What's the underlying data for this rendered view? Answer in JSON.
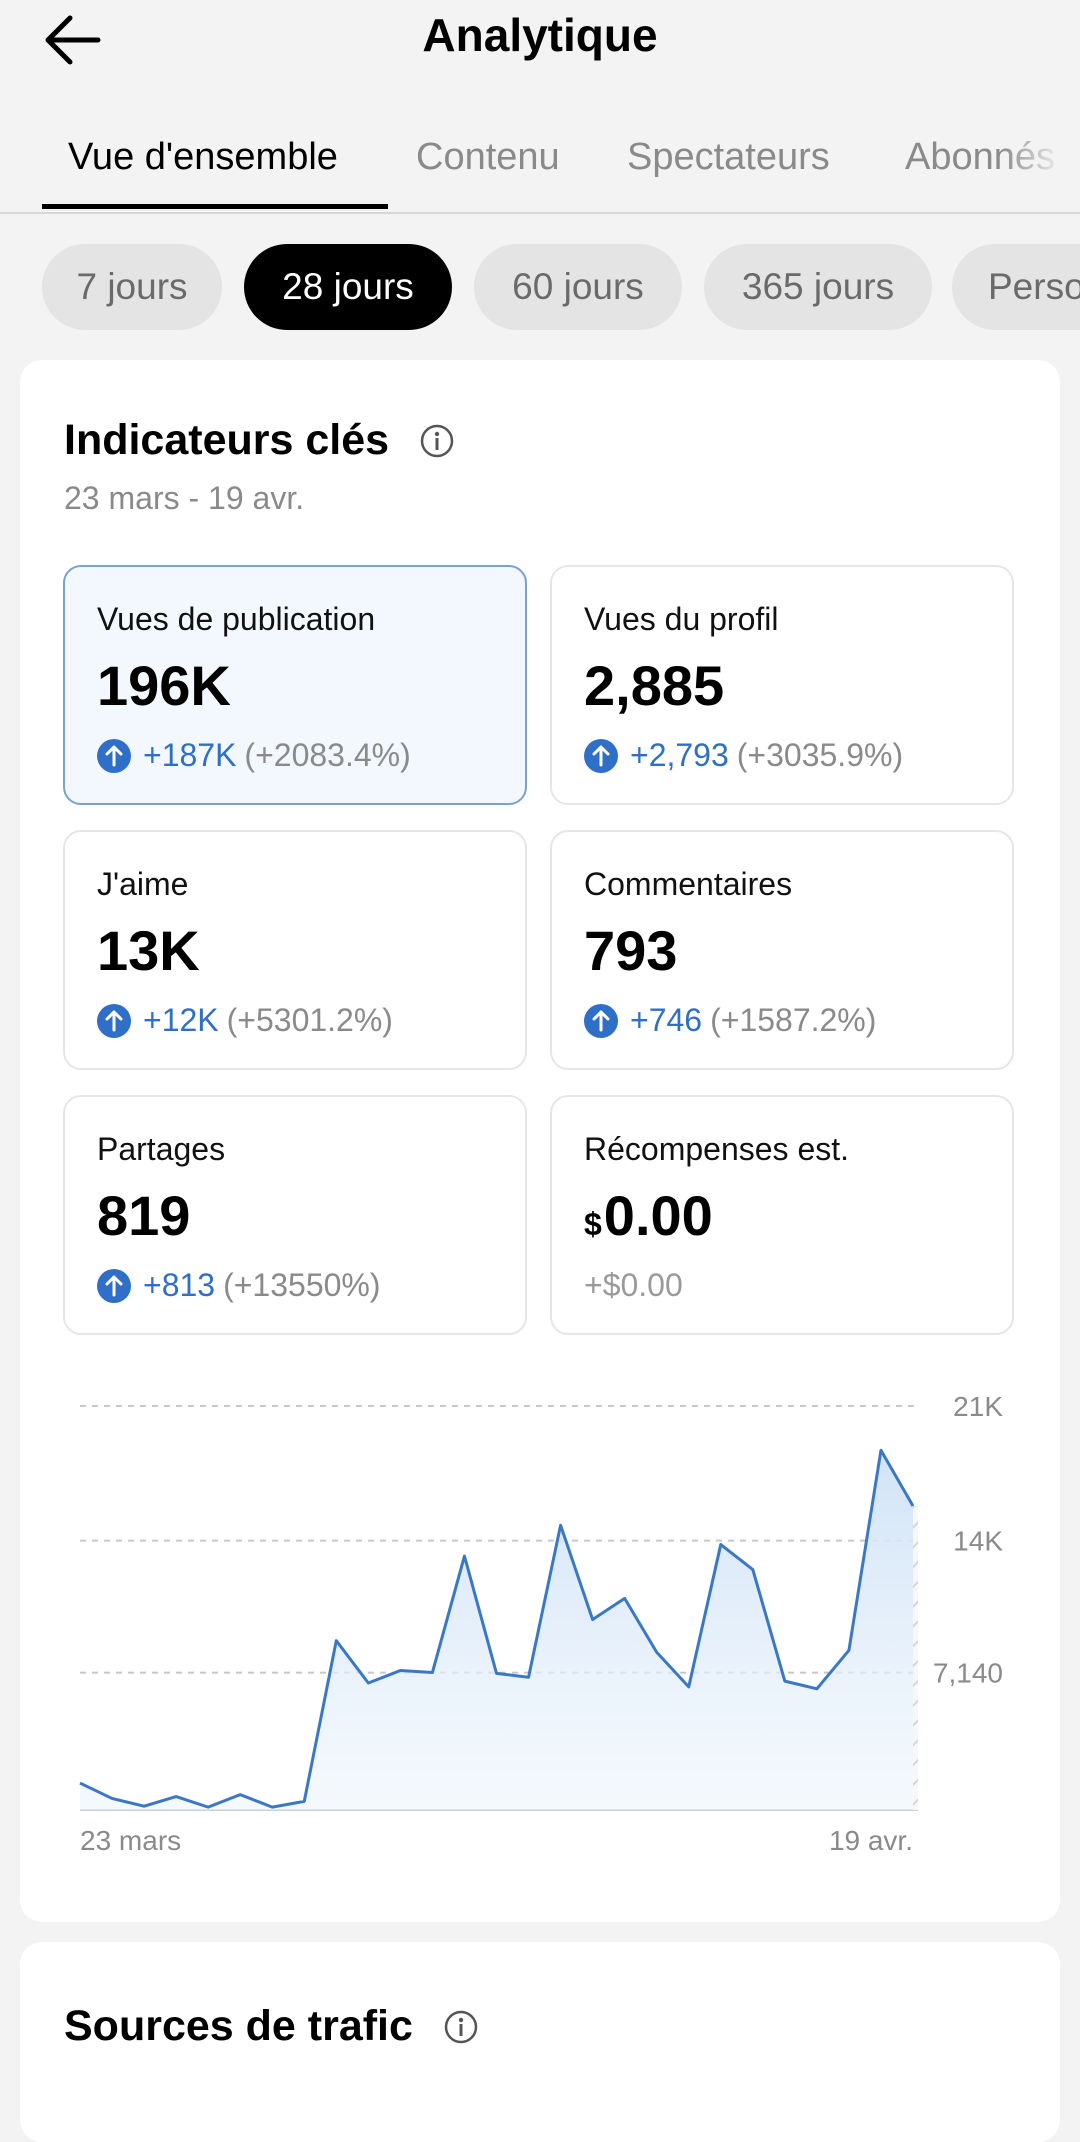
{
  "header": {
    "title": "Analytique",
    "back_icon": "arrow-left-icon"
  },
  "tabs": [
    {
      "label": "Vue d'ensemble",
      "active": true
    },
    {
      "label": "Contenu",
      "active": false
    },
    {
      "label": "Spectateurs",
      "active": false
    },
    {
      "label": "Abonnés",
      "active": false
    }
  ],
  "periods": [
    {
      "label": "7 jours",
      "active": false
    },
    {
      "label": "28 jours",
      "active": true
    },
    {
      "label": "60 jours",
      "active": false
    },
    {
      "label": "365 jours",
      "active": false
    },
    {
      "label": "Personnalisé",
      "active": false
    }
  ],
  "key_metrics": {
    "title": "Indicateurs clés",
    "info_icon": "info-icon",
    "date_range": "23 mars - 19 avr.",
    "cards": [
      {
        "label": "Vues de publication",
        "value": "196K",
        "delta": "+187K",
        "percent": "(+2083.4%)",
        "selected": true
      },
      {
        "label": "Vues du profil",
        "value": "2,885",
        "delta": "+2,793",
        "percent": "(+3035.9%)"
      },
      {
        "label": "J'aime",
        "value": "13K",
        "delta": "+12K",
        "percent": "(+5301.2%)"
      },
      {
        "label": "Commentaires",
        "value": "793",
        "delta": "+746",
        "percent": "(+1587.2%)"
      },
      {
        "label": "Partages",
        "value": "819",
        "delta": "+813",
        "percent": "(+13550%)"
      },
      {
        "label": "Récompenses est.",
        "currency": "$",
        "value": "0.00",
        "change": "+$0.00"
      }
    ]
  },
  "chart_data": {
    "type": "area",
    "series": [
      {
        "values": [
          1400,
          600,
          200,
          700,
          150,
          800,
          150,
          450,
          8800,
          6600,
          7250,
          7150,
          13200,
          7100,
          6900,
          14800,
          9900,
          11000,
          8200,
          6400,
          13800,
          12500,
          6700,
          6300,
          8300,
          18700,
          15800
        ]
      }
    ],
    "x_labels": [
      "23 mars",
      "19 avr."
    ],
    "y_ticks": [
      {
        "value": 21000,
        "label": "21K"
      },
      {
        "value": 14000,
        "label": "14K"
      },
      {
        "value": 7140,
        "label": "7,140"
      }
    ],
    "ylim": [
      0,
      21000
    ],
    "grid": true,
    "line_color": "#3a78c6",
    "fill_color": "#cfe2f6"
  },
  "traffic_sources": {
    "title": "Sources de trafic",
    "info_icon": "info-icon"
  },
  "colors": {
    "accent": "#2f6fc7",
    "selected_bg": "#f2f8fe",
    "selected_border": "#7aa3c9"
  }
}
